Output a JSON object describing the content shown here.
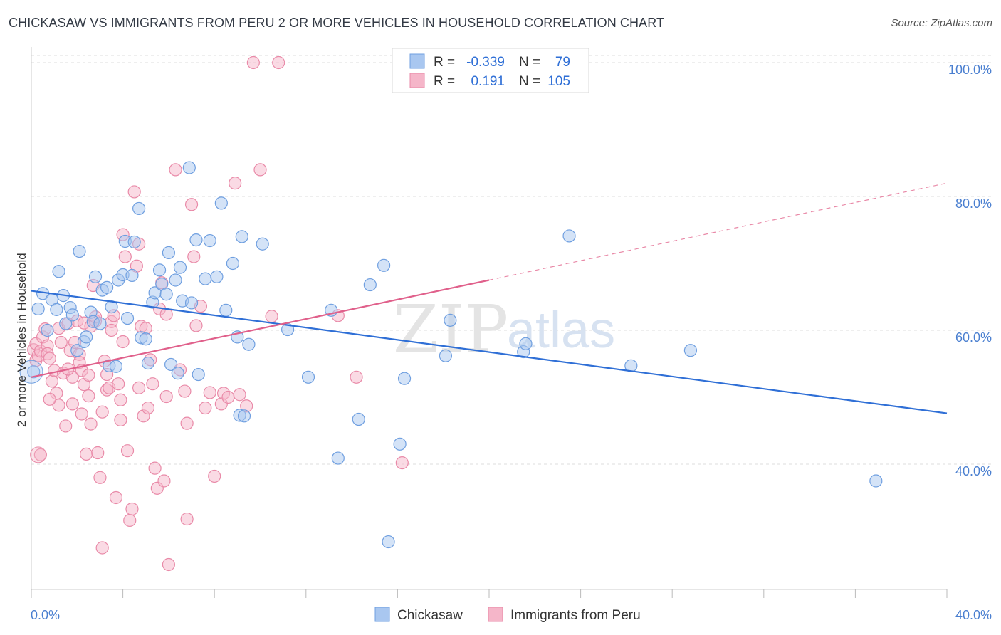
{
  "title": "CHICKASAW VS IMMIGRANTS FROM PERU 2 OR MORE VEHICLES IN HOUSEHOLD CORRELATION CHART",
  "source": "Source: ZipAtlas.com",
  "watermark": {
    "zip": "ZIP",
    "atlas": "atlas"
  },
  "colors": {
    "blue_fill": "#a9c7f0",
    "blue_stroke": "#6f9fe0",
    "blue_line": "#2f6fd6",
    "pink_fill": "#f5b6c9",
    "pink_stroke": "#e98aa8",
    "pink_line": "#e0608b",
    "grid": "#dddddd",
    "axis_label": "#4a7fd0"
  },
  "legend": {
    "r_label": "R =",
    "n_label": "N =",
    "rows": [
      {
        "r": "-0.339",
        "n": "79"
      },
      {
        "r": "0.191",
        "n": "105"
      }
    ]
  },
  "chart_data": {
    "type": "scatter",
    "title": "CHICKASAW VS IMMIGRANTS FROM PERU 2 OR MORE VEHICLES IN HOUSEHOLD CORRELATION CHART",
    "xlabel": "",
    "ylabel": "2 or more Vehicles in Household",
    "xlim": [
      0,
      40
    ],
    "ylim": [
      20,
      102
    ],
    "x_ticks": [
      {
        "value": 0,
        "label": "0.0%"
      },
      {
        "value": 40,
        "label": "40.0%"
      }
    ],
    "y_ticks": [
      {
        "value": 40,
        "label": "40.0%"
      },
      {
        "value": 60,
        "label": "60.0%"
      },
      {
        "value": 80,
        "label": "80.0%"
      },
      {
        "value": 100,
        "label": "100.0%"
      }
    ],
    "grid": true,
    "legend_position": "top-center",
    "series": [
      {
        "name": "Chickasaw",
        "color": "#a9c7f0",
        "R": -0.339,
        "N": 79,
        "trend": {
          "x": [
            0,
            40
          ],
          "y": [
            65.9,
            47.6
          ]
        },
        "points": [
          [
            0.1,
            53.8
          ],
          [
            0.3,
            63.2
          ],
          [
            0.5,
            65.5
          ],
          [
            0.7,
            60.0
          ],
          [
            0.9,
            64.6
          ],
          [
            1.1,
            63.1
          ],
          [
            1.2,
            68.8
          ],
          [
            1.4,
            65.2
          ],
          [
            1.5,
            61.0
          ],
          [
            1.7,
            63.4
          ],
          [
            1.8,
            62.3
          ],
          [
            2.0,
            57.0
          ],
          [
            2.1,
            71.8
          ],
          [
            2.3,
            58.3
          ],
          [
            2.4,
            59.0
          ],
          [
            2.6,
            62.7
          ],
          [
            2.7,
            61.3
          ],
          [
            2.8,
            68.0
          ],
          [
            3.0,
            61.0
          ],
          [
            3.1,
            66.0
          ],
          [
            3.3,
            66.4
          ],
          [
            3.4,
            54.7
          ],
          [
            3.5,
            63.5
          ],
          [
            3.7,
            54.6
          ],
          [
            3.8,
            67.5
          ],
          [
            4.0,
            68.3
          ],
          [
            4.1,
            73.3
          ],
          [
            4.2,
            61.8
          ],
          [
            4.4,
            68.2
          ],
          [
            4.5,
            73.2
          ],
          [
            4.7,
            78.2
          ],
          [
            4.8,
            58.9
          ],
          [
            5.0,
            58.7
          ],
          [
            5.1,
            55.1
          ],
          [
            5.3,
            64.2
          ],
          [
            5.4,
            65.6
          ],
          [
            5.6,
            69.0
          ],
          [
            5.7,
            66.9
          ],
          [
            5.9,
            65.4
          ],
          [
            6.0,
            71.6
          ],
          [
            6.1,
            54.9
          ],
          [
            6.3,
            67.5
          ],
          [
            6.4,
            53.6
          ],
          [
            6.5,
            69.4
          ],
          [
            6.6,
            64.4
          ],
          [
            6.9,
            84.3
          ],
          [
            7.0,
            64.1
          ],
          [
            7.2,
            73.5
          ],
          [
            7.3,
            53.4
          ],
          [
            7.6,
            67.7
          ],
          [
            7.8,
            73.4
          ],
          [
            8.1,
            68.0
          ],
          [
            8.5,
            63.0
          ],
          [
            8.3,
            79.0
          ],
          [
            8.8,
            70.0
          ],
          [
            9.0,
            59.0
          ],
          [
            9.1,
            47.3
          ],
          [
            9.2,
            74.0
          ],
          [
            9.3,
            47.2
          ],
          [
            9.5,
            57.9
          ],
          [
            10.1,
            72.9
          ],
          [
            11.2,
            60.1
          ],
          [
            12.1,
            53.0
          ],
          [
            13.1,
            63.0
          ],
          [
            13.4,
            40.9
          ],
          [
            14.3,
            46.7
          ],
          [
            14.8,
            66.8
          ],
          [
            15.4,
            69.7
          ],
          [
            15.6,
            28.4
          ],
          [
            16.1,
            43.0
          ],
          [
            16.3,
            52.8
          ],
          [
            18.1,
            56.2
          ],
          [
            18.3,
            61.5
          ],
          [
            21.5,
            56.8
          ],
          [
            21.6,
            58.0
          ],
          [
            23.5,
            74.1
          ],
          [
            26.2,
            54.7
          ],
          [
            28.8,
            57.0
          ],
          [
            36.9,
            37.5
          ]
        ]
      },
      {
        "name": "Immigrants from Peru",
        "color": "#f5b6c9",
        "R": 0.191,
        "N": 105,
        "trend": {
          "x": [
            0,
            20
          ],
          "y": [
            53.0,
            67.5
          ]
        },
        "trend_extension": {
          "x": [
            20,
            40
          ],
          "y": [
            67.5,
            82.0
          ]
        },
        "points": [
          [
            0.1,
            57.1
          ],
          [
            0.2,
            58.0
          ],
          [
            0.2,
            55.5
          ],
          [
            0.3,
            56.2
          ],
          [
            0.4,
            56.9
          ],
          [
            0.4,
            41.4
          ],
          [
            0.5,
            59.0
          ],
          [
            0.6,
            60.2
          ],
          [
            0.7,
            57.7
          ],
          [
            0.7,
            56.5
          ],
          [
            0.8,
            55.8
          ],
          [
            0.9,
            52.4
          ],
          [
            1.0,
            54.0
          ],
          [
            1.1,
            50.6
          ],
          [
            1.2,
            48.8
          ],
          [
            1.2,
            60.3
          ],
          [
            1.3,
            58.2
          ],
          [
            1.4,
            53.6
          ],
          [
            1.5,
            45.7
          ],
          [
            1.6,
            61.0
          ],
          [
            1.7,
            57.0
          ],
          [
            1.8,
            53.0
          ],
          [
            1.8,
            49.0
          ],
          [
            1.9,
            58.2
          ],
          [
            2.0,
            61.4
          ],
          [
            2.1,
            56.4
          ],
          [
            2.1,
            55.2
          ],
          [
            2.2,
            54.0
          ],
          [
            2.3,
            61.1
          ],
          [
            2.3,
            51.9
          ],
          [
            2.4,
            41.5
          ],
          [
            2.5,
            50.2
          ],
          [
            2.6,
            46.0
          ],
          [
            2.6,
            60.6
          ],
          [
            2.7,
            66.7
          ],
          [
            2.8,
            61.4
          ],
          [
            2.8,
            62.0
          ],
          [
            2.9,
            41.7
          ],
          [
            3.0,
            38.0
          ],
          [
            3.1,
            47.8
          ],
          [
            3.2,
            55.4
          ],
          [
            3.3,
            53.4
          ],
          [
            3.3,
            51.1
          ],
          [
            3.4,
            51.4
          ],
          [
            3.5,
            61.3
          ],
          [
            3.5,
            60.0
          ],
          [
            3.6,
            62.2
          ],
          [
            3.7,
            35.0
          ],
          [
            3.8,
            52.0
          ],
          [
            3.9,
            46.6
          ],
          [
            4.0,
            58.3
          ],
          [
            4.0,
            74.3
          ],
          [
            4.1,
            71.0
          ],
          [
            4.2,
            42.0
          ],
          [
            4.3,
            31.6
          ],
          [
            4.4,
            33.3
          ],
          [
            4.5,
            80.7
          ],
          [
            4.6,
            69.6
          ],
          [
            4.7,
            72.9
          ],
          [
            4.8,
            60.6
          ],
          [
            4.9,
            47.2
          ],
          [
            5.0,
            60.3
          ],
          [
            5.1,
            48.4
          ],
          [
            5.2,
            55.6
          ],
          [
            5.3,
            52.0
          ],
          [
            5.4,
            39.4
          ],
          [
            5.5,
            36.4
          ],
          [
            5.6,
            63.2
          ],
          [
            5.7,
            67.1
          ],
          [
            5.8,
            37.5
          ],
          [
            5.9,
            62.4
          ],
          [
            6.0,
            25.0
          ],
          [
            6.3,
            84.0
          ],
          [
            6.5,
            54.1
          ],
          [
            6.7,
            50.9
          ],
          [
            6.8,
            31.8
          ],
          [
            7.0,
            78.8
          ],
          [
            7.1,
            71.0
          ],
          [
            7.2,
            60.7
          ],
          [
            7.4,
            63.6
          ],
          [
            7.6,
            48.4
          ],
          [
            7.8,
            50.7
          ],
          [
            8.0,
            38.2
          ],
          [
            8.3,
            49.0
          ],
          [
            8.4,
            50.6
          ],
          [
            8.6,
            50.0
          ],
          [
            8.9,
            82.0
          ],
          [
            9.1,
            50.4
          ],
          [
            9.4,
            48.7
          ],
          [
            9.7,
            100.0
          ],
          [
            10.0,
            84.0
          ],
          [
            10.5,
            62.1
          ],
          [
            10.8,
            100.0
          ],
          [
            13.4,
            62.2
          ],
          [
            14.2,
            53.0
          ],
          [
            16.2,
            40.2
          ],
          [
            3.1,
            27.5
          ],
          [
            0.8,
            49.7
          ],
          [
            1.6,
            54.2
          ],
          [
            2.2,
            47.5
          ],
          [
            4.7,
            51.4
          ],
          [
            5.9,
            50.1
          ],
          [
            3.9,
            49.6
          ],
          [
            6.8,
            46.1
          ],
          [
            2.5,
            53.3
          ]
        ]
      }
    ]
  },
  "bottom_legend": [
    "Chickasaw",
    "Immigrants from Peru"
  ]
}
